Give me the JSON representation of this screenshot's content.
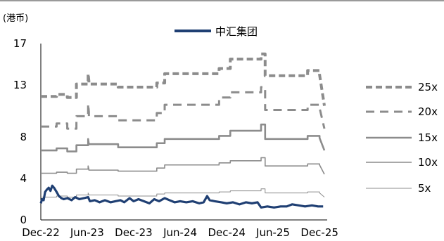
{
  "chart_data": {
    "type": "line",
    "unit_label": "(港币)",
    "legend": {
      "position": "top-center",
      "entries": [
        "中汇集团"
      ]
    },
    "y_axis": {
      "min": 0,
      "max": 17,
      "ticks": [
        "0",
        "4",
        "8",
        "13",
        "17"
      ],
      "tick_values": [
        0,
        4,
        8,
        13,
        17
      ]
    },
    "x_axis": {
      "start": "2022-12-01",
      "end": "2025-12-31",
      "ticks": [
        "Dec-22",
        "Jun-23",
        "Dec-23",
        "Jun-24",
        "Dec-24",
        "Jun-25",
        "Dec-25"
      ],
      "tick_dates": [
        "2022-12-01",
        "2023-06-01",
        "2023-12-01",
        "2024-06-01",
        "2024-12-01",
        "2025-06-01",
        "2025-12-01"
      ]
    },
    "grid": false,
    "series": [
      {
        "name": "中汇集团",
        "style": "price",
        "color": "#1f3f73",
        "points": [
          [
            "2022-12-01",
            1.6
          ],
          [
            "2022-12-06",
            2.0
          ],
          [
            "2022-12-12",
            1.9
          ],
          [
            "2022-12-18",
            2.7
          ],
          [
            "2022-12-24",
            2.9
          ],
          [
            "2023-01-01",
            3.1
          ],
          [
            "2023-01-08",
            2.8
          ],
          [
            "2023-01-15",
            3.3
          ],
          [
            "2023-01-22",
            3.1
          ],
          [
            "2023-02-01",
            2.7
          ],
          [
            "2023-02-10",
            2.3
          ],
          [
            "2023-02-20",
            2.1
          ],
          [
            "2023-03-01",
            2.0
          ],
          [
            "2023-03-15",
            2.1
          ],
          [
            "2023-04-01",
            1.9
          ],
          [
            "2023-04-15",
            2.2
          ],
          [
            "2023-05-01",
            2.0
          ],
          [
            "2023-05-20",
            2.1
          ],
          [
            "2023-06-05",
            2.2
          ],
          [
            "2023-06-12",
            1.8
          ],
          [
            "2023-07-01",
            1.9
          ],
          [
            "2023-07-20",
            1.7
          ],
          [
            "2023-08-10",
            1.9
          ],
          [
            "2023-09-01",
            1.7
          ],
          [
            "2023-09-20",
            1.8
          ],
          [
            "2023-10-10",
            1.9
          ],
          [
            "2023-10-25",
            1.7
          ],
          [
            "2023-11-15",
            2.1
          ],
          [
            "2023-12-01",
            1.8
          ],
          [
            "2023-12-20",
            2.0
          ],
          [
            "2024-01-10",
            1.8
          ],
          [
            "2024-02-01",
            1.6
          ],
          [
            "2024-02-20",
            2.0
          ],
          [
            "2024-03-10",
            1.8
          ],
          [
            "2024-04-01",
            2.1
          ],
          [
            "2024-04-20",
            1.9
          ],
          [
            "2024-05-10",
            1.7
          ],
          [
            "2024-06-01",
            1.8
          ],
          [
            "2024-06-25",
            1.7
          ],
          [
            "2024-07-20",
            1.8
          ],
          [
            "2024-08-15",
            1.6
          ],
          [
            "2024-09-01",
            1.7
          ],
          [
            "2024-09-15",
            2.3
          ],
          [
            "2024-09-25",
            1.9
          ],
          [
            "2024-10-15",
            1.8
          ],
          [
            "2024-11-10",
            1.7
          ],
          [
            "2024-12-01",
            1.6
          ],
          [
            "2024-12-25",
            1.7
          ],
          [
            "2025-01-20",
            1.5
          ],
          [
            "2025-02-15",
            1.7
          ],
          [
            "2025-03-10",
            1.6
          ],
          [
            "2025-04-01",
            1.7
          ],
          [
            "2025-04-15",
            1.2
          ],
          [
            "2025-05-10",
            1.3
          ],
          [
            "2025-06-05",
            1.2
          ],
          [
            "2025-07-01",
            1.3
          ],
          [
            "2025-07-25",
            1.3
          ],
          [
            "2025-08-15",
            1.5
          ],
          [
            "2025-09-10",
            1.4
          ],
          [
            "2025-10-05",
            1.3
          ],
          [
            "2025-11-01",
            1.4
          ],
          [
            "2025-11-25",
            1.3
          ],
          [
            "2025-12-15",
            1.3
          ]
        ]
      },
      {
        "name": "25x",
        "style": "dashed-bold",
        "color": "#8c8c8c",
        "points": [
          [
            "2022-12-01",
            11.9
          ],
          [
            "2023-02-01",
            11.9
          ],
          [
            "2023-02-01",
            12.1
          ],
          [
            "2023-03-15",
            12.1
          ],
          [
            "2023-03-15",
            11.8
          ],
          [
            "2023-04-20",
            11.8
          ],
          [
            "2023-04-20",
            13.1
          ],
          [
            "2023-06-05",
            13.1
          ],
          [
            "2023-06-05",
            14.1
          ],
          [
            "2023-06-08",
            13.4
          ],
          [
            "2023-06-08",
            13.1
          ],
          [
            "2023-10-01",
            13.1
          ],
          [
            "2023-10-01",
            12.8
          ],
          [
            "2024-03-01",
            12.8
          ],
          [
            "2024-03-01",
            13.2
          ],
          [
            "2024-04-01",
            13.2
          ],
          [
            "2024-04-01",
            14.1
          ],
          [
            "2024-11-01",
            14.1
          ],
          [
            "2024-11-01",
            14.6
          ],
          [
            "2024-12-15",
            14.6
          ],
          [
            "2024-12-15",
            15.5
          ],
          [
            "2025-04-15",
            15.5
          ],
          [
            "2025-04-15",
            16.0
          ],
          [
            "2025-05-01",
            16.0
          ],
          [
            "2025-05-01",
            13.9
          ],
          [
            "2025-10-15",
            13.9
          ],
          [
            "2025-10-15",
            14.4
          ],
          [
            "2025-12-01",
            14.4
          ],
          [
            "2025-12-01",
            14.0
          ],
          [
            "2025-12-20",
            11.0
          ]
        ]
      },
      {
        "name": "20x",
        "style": "dashed",
        "color": "#8c8c8c",
        "points": [
          [
            "2022-12-01",
            9.0
          ],
          [
            "2023-02-01",
            9.0
          ],
          [
            "2023-02-01",
            9.3
          ],
          [
            "2023-03-15",
            9.3
          ],
          [
            "2023-03-15",
            8.8
          ],
          [
            "2023-04-20",
            8.8
          ],
          [
            "2023-04-20",
            10.0
          ],
          [
            "2023-06-05",
            10.0
          ],
          [
            "2023-06-05",
            11.2
          ],
          [
            "2023-06-08",
            10.4
          ],
          [
            "2023-06-08",
            10.0
          ],
          [
            "2023-10-01",
            10.0
          ],
          [
            "2023-10-01",
            9.6
          ],
          [
            "2024-03-01",
            9.6
          ],
          [
            "2024-03-01",
            10.3
          ],
          [
            "2024-04-01",
            10.3
          ],
          [
            "2024-04-01",
            11.1
          ],
          [
            "2024-11-01",
            11.1
          ],
          [
            "2024-11-01",
            11.8
          ],
          [
            "2024-12-15",
            11.8
          ],
          [
            "2024-12-15",
            12.3
          ],
          [
            "2025-04-15",
            12.3
          ],
          [
            "2025-04-15",
            12.8
          ],
          [
            "2025-05-01",
            12.8
          ],
          [
            "2025-05-01",
            10.6
          ],
          [
            "2025-10-15",
            10.6
          ],
          [
            "2025-10-15",
            11.1
          ],
          [
            "2025-12-01",
            11.1
          ],
          [
            "2025-12-01",
            10.8
          ],
          [
            "2025-12-20",
            8.8
          ]
        ]
      },
      {
        "name": "15x",
        "style": "solid-bold",
        "color": "#8c8c8c",
        "points": [
          [
            "2022-12-01",
            6.7
          ],
          [
            "2023-02-01",
            6.7
          ],
          [
            "2023-02-01",
            6.9
          ],
          [
            "2023-03-15",
            6.9
          ],
          [
            "2023-03-15",
            6.6
          ],
          [
            "2023-04-20",
            6.6
          ],
          [
            "2023-04-20",
            7.2
          ],
          [
            "2023-06-05",
            7.2
          ],
          [
            "2023-06-05",
            7.8
          ],
          [
            "2023-06-08",
            7.3
          ],
          [
            "2023-06-08",
            7.3
          ],
          [
            "2023-10-01",
            7.3
          ],
          [
            "2023-10-01",
            7.0
          ],
          [
            "2024-03-01",
            7.0
          ],
          [
            "2024-03-01",
            7.4
          ],
          [
            "2024-04-01",
            7.4
          ],
          [
            "2024-04-01",
            7.8
          ],
          [
            "2024-11-01",
            7.8
          ],
          [
            "2024-11-01",
            8.1
          ],
          [
            "2024-12-15",
            8.1
          ],
          [
            "2024-12-15",
            8.6
          ],
          [
            "2025-04-15",
            8.6
          ],
          [
            "2025-04-15",
            9.2
          ],
          [
            "2025-05-01",
            9.2
          ],
          [
            "2025-05-01",
            7.8
          ],
          [
            "2025-10-15",
            7.8
          ],
          [
            "2025-10-15",
            8.1
          ],
          [
            "2025-12-01",
            8.1
          ],
          [
            "2025-12-01",
            7.9
          ],
          [
            "2025-12-20",
            6.7
          ]
        ]
      },
      {
        "name": "10x",
        "style": "solid",
        "color": "#8c8c8c",
        "points": [
          [
            "2022-12-01",
            4.5
          ],
          [
            "2023-02-01",
            4.5
          ],
          [
            "2023-02-01",
            4.6
          ],
          [
            "2023-03-15",
            4.6
          ],
          [
            "2023-03-15",
            4.5
          ],
          [
            "2023-04-20",
            4.5
          ],
          [
            "2023-04-20",
            4.9
          ],
          [
            "2023-06-05",
            4.9
          ],
          [
            "2023-06-05",
            5.2
          ],
          [
            "2023-06-08",
            4.9
          ],
          [
            "2023-06-08",
            4.8
          ],
          [
            "2023-10-01",
            4.8
          ],
          [
            "2023-10-01",
            4.7
          ],
          [
            "2024-03-01",
            4.7
          ],
          [
            "2024-03-01",
            5.0
          ],
          [
            "2024-04-01",
            5.0
          ],
          [
            "2024-04-01",
            5.3
          ],
          [
            "2024-11-01",
            5.3
          ],
          [
            "2024-11-01",
            5.5
          ],
          [
            "2024-12-15",
            5.5
          ],
          [
            "2024-12-15",
            5.7
          ],
          [
            "2025-04-15",
            5.7
          ],
          [
            "2025-04-15",
            6.0
          ],
          [
            "2025-05-01",
            6.0
          ],
          [
            "2025-05-01",
            5.2
          ],
          [
            "2025-10-15",
            5.2
          ],
          [
            "2025-10-15",
            5.4
          ],
          [
            "2025-12-01",
            5.4
          ],
          [
            "2025-12-01",
            5.3
          ],
          [
            "2025-12-20",
            4.4
          ]
        ]
      },
      {
        "name": "5x",
        "style": "solid-thin",
        "color": "#8c8c8c",
        "points": [
          [
            "2022-12-01",
            2.2
          ],
          [
            "2023-02-01",
            2.2
          ],
          [
            "2023-02-01",
            2.3
          ],
          [
            "2023-03-15",
            2.3
          ],
          [
            "2023-03-15",
            2.2
          ],
          [
            "2023-04-20",
            2.2
          ],
          [
            "2023-04-20",
            2.4
          ],
          [
            "2023-06-05",
            2.4
          ],
          [
            "2023-06-05",
            2.6
          ],
          [
            "2023-06-08",
            2.4
          ],
          [
            "2023-06-08",
            2.4
          ],
          [
            "2023-10-01",
            2.4
          ],
          [
            "2023-10-01",
            2.3
          ],
          [
            "2024-03-01",
            2.3
          ],
          [
            "2024-03-01",
            2.5
          ],
          [
            "2024-04-01",
            2.5
          ],
          [
            "2024-04-01",
            2.6
          ],
          [
            "2024-11-01",
            2.6
          ],
          [
            "2024-11-01",
            2.7
          ],
          [
            "2024-12-15",
            2.7
          ],
          [
            "2024-12-15",
            2.8
          ],
          [
            "2025-04-15",
            2.8
          ],
          [
            "2025-04-15",
            3.0
          ],
          [
            "2025-05-01",
            3.0
          ],
          [
            "2025-05-01",
            2.6
          ],
          [
            "2025-10-15",
            2.6
          ],
          [
            "2025-10-15",
            2.7
          ],
          [
            "2025-12-01",
            2.7
          ],
          [
            "2025-12-01",
            2.6
          ],
          [
            "2025-12-20",
            2.2
          ]
        ]
      }
    ]
  }
}
